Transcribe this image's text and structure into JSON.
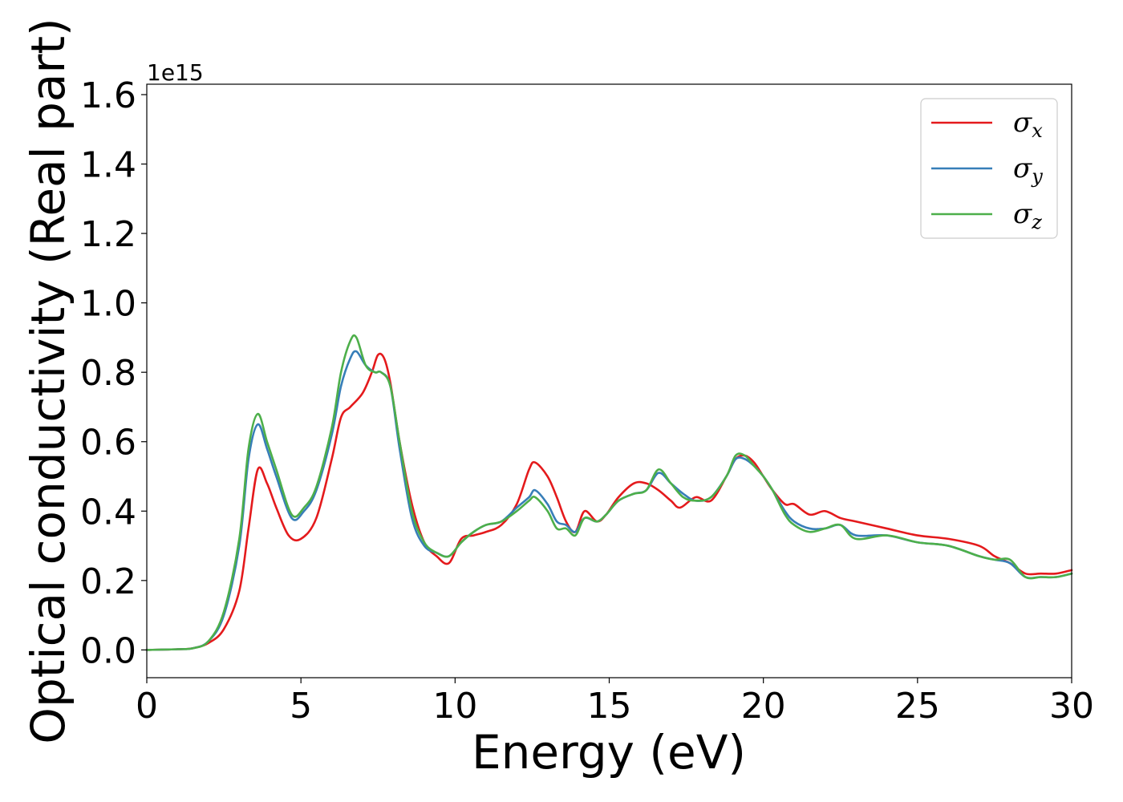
{
  "chart_data": {
    "type": "line",
    "xlabel": "Energy (eV)",
    "ylabel": "Optical conductivity (Real part)",
    "y_offset_label": "1e15",
    "xlim": [
      0,
      30
    ],
    "ylim": [
      -0.08,
      1.63
    ],
    "xticks": [
      0,
      5,
      10,
      15,
      20,
      25,
      30
    ],
    "xtick_labels": [
      "0",
      "5",
      "10",
      "15",
      "20",
      "25",
      "30"
    ],
    "yticks": [
      0.0,
      0.2,
      0.4,
      0.6,
      0.8,
      1.0,
      1.2,
      1.4,
      1.6
    ],
    "ytick_labels": [
      "0.0",
      "0.2",
      "0.4",
      "0.6",
      "0.8",
      "1.0",
      "1.2",
      "1.4",
      "1.6"
    ],
    "grid": false,
    "legend_position": "top-right",
    "series": [
      {
        "name": "σx",
        "symbol": "σ",
        "subscript": "x",
        "color": "#e41a1c",
        "x": [
          0,
          1,
          1.5,
          2,
          2.5,
          3,
          3.3,
          3.6,
          3.9,
          4.2,
          4.6,
          5,
          5.5,
          6,
          6.3,
          6.6,
          7,
          7.3,
          7.5,
          7.7,
          7.9,
          8.2,
          8.6,
          9,
          9.4,
          9.8,
          10.2,
          10.6,
          11,
          11.5,
          12,
          12.4,
          12.6,
          13,
          13.3,
          13.6,
          13.9,
          14.2,
          14.6,
          14.9,
          15.3,
          15.8,
          16.2,
          16.6,
          17,
          17.3,
          17.8,
          18.3,
          18.8,
          19.1,
          19.4,
          19.7,
          20,
          20.3,
          20.7,
          21,
          21.5,
          22,
          22.5,
          23,
          24,
          25,
          26,
          27,
          27.5,
          28,
          28.5,
          29,
          29.5,
          30
        ],
        "values": [
          0,
          0.002,
          0.005,
          0.02,
          0.06,
          0.17,
          0.35,
          0.52,
          0.48,
          0.41,
          0.33,
          0.32,
          0.38,
          0.55,
          0.67,
          0.7,
          0.74,
          0.8,
          0.85,
          0.84,
          0.77,
          0.6,
          0.42,
          0.31,
          0.27,
          0.25,
          0.32,
          0.33,
          0.34,
          0.36,
          0.42,
          0.52,
          0.54,
          0.5,
          0.44,
          0.37,
          0.34,
          0.4,
          0.37,
          0.39,
          0.44,
          0.48,
          0.48,
          0.46,
          0.43,
          0.41,
          0.44,
          0.43,
          0.5,
          0.55,
          0.56,
          0.54,
          0.5,
          0.46,
          0.42,
          0.42,
          0.39,
          0.4,
          0.38,
          0.37,
          0.35,
          0.33,
          0.32,
          0.3,
          0.27,
          0.25,
          0.22,
          0.22,
          0.22,
          0.23
        ]
      },
      {
        "name": "σy",
        "symbol": "σ",
        "subscript": "y",
        "color": "#377eb8",
        "x": [
          0,
          1,
          1.5,
          2,
          2.5,
          3,
          3.3,
          3.6,
          3.9,
          4.2,
          4.7,
          5.1,
          5.5,
          6,
          6.3,
          6.6,
          6.8,
          7.1,
          7.4,
          7.6,
          7.9,
          8.2,
          8.6,
          9,
          9.4,
          9.8,
          10.2,
          10.6,
          11,
          11.5,
          12,
          12.4,
          12.6,
          13,
          13.3,
          13.6,
          13.9,
          14.2,
          14.6,
          14.9,
          15.3,
          15.8,
          16.2,
          16.6,
          17,
          17.4,
          17.8,
          18.3,
          18.8,
          19.1,
          19.4,
          19.7,
          20,
          20.3,
          20.7,
          21,
          21.5,
          22,
          22.5,
          23,
          24,
          25,
          26,
          27,
          27.5,
          28,
          28.5,
          29,
          29.5,
          30
        ],
        "values": [
          0,
          0.002,
          0.005,
          0.025,
          0.1,
          0.3,
          0.55,
          0.65,
          0.58,
          0.5,
          0.38,
          0.4,
          0.46,
          0.62,
          0.76,
          0.84,
          0.86,
          0.82,
          0.8,
          0.8,
          0.76,
          0.58,
          0.38,
          0.3,
          0.28,
          0.27,
          0.31,
          0.34,
          0.36,
          0.37,
          0.41,
          0.44,
          0.46,
          0.42,
          0.37,
          0.36,
          0.34,
          0.38,
          0.37,
          0.39,
          0.43,
          0.45,
          0.46,
          0.51,
          0.48,
          0.45,
          0.43,
          0.44,
          0.5,
          0.55,
          0.55,
          0.53,
          0.5,
          0.46,
          0.4,
          0.37,
          0.35,
          0.35,
          0.36,
          0.33,
          0.33,
          0.31,
          0.3,
          0.27,
          0.26,
          0.25,
          0.21,
          0.21,
          0.21,
          0.22
        ]
      },
      {
        "name": "σz",
        "symbol": "σ",
        "subscript": "z",
        "color": "#4daf4a",
        "x": [
          0,
          1,
          1.5,
          2,
          2.5,
          3,
          3.3,
          3.6,
          3.9,
          4.2,
          4.7,
          5.1,
          5.5,
          6,
          6.3,
          6.6,
          6.8,
          7.1,
          7.4,
          7.6,
          7.9,
          8.2,
          8.6,
          9,
          9.4,
          9.8,
          10.2,
          10.6,
          11,
          11.5,
          12,
          12.4,
          12.6,
          13,
          13.3,
          13.6,
          13.9,
          14.2,
          14.6,
          14.9,
          15.3,
          15.8,
          16.2,
          16.6,
          17,
          17.4,
          17.8,
          18.3,
          18.8,
          19.1,
          19.4,
          19.7,
          20,
          20.3,
          20.7,
          21,
          21.5,
          22,
          22.5,
          23,
          24,
          25,
          26,
          27,
          27.5,
          28,
          28.5,
          29,
          29.5,
          30
        ],
        "values": [
          0,
          0.002,
          0.005,
          0.025,
          0.11,
          0.32,
          0.58,
          0.68,
          0.6,
          0.52,
          0.39,
          0.41,
          0.47,
          0.64,
          0.8,
          0.89,
          0.9,
          0.82,
          0.8,
          0.8,
          0.76,
          0.6,
          0.4,
          0.31,
          0.28,
          0.27,
          0.31,
          0.34,
          0.36,
          0.37,
          0.4,
          0.43,
          0.44,
          0.4,
          0.35,
          0.35,
          0.33,
          0.38,
          0.37,
          0.39,
          0.43,
          0.45,
          0.46,
          0.52,
          0.48,
          0.44,
          0.43,
          0.44,
          0.5,
          0.56,
          0.56,
          0.53,
          0.5,
          0.46,
          0.39,
          0.36,
          0.34,
          0.35,
          0.36,
          0.32,
          0.33,
          0.31,
          0.3,
          0.27,
          0.26,
          0.26,
          0.21,
          0.21,
          0.21,
          0.22
        ]
      }
    ]
  }
}
